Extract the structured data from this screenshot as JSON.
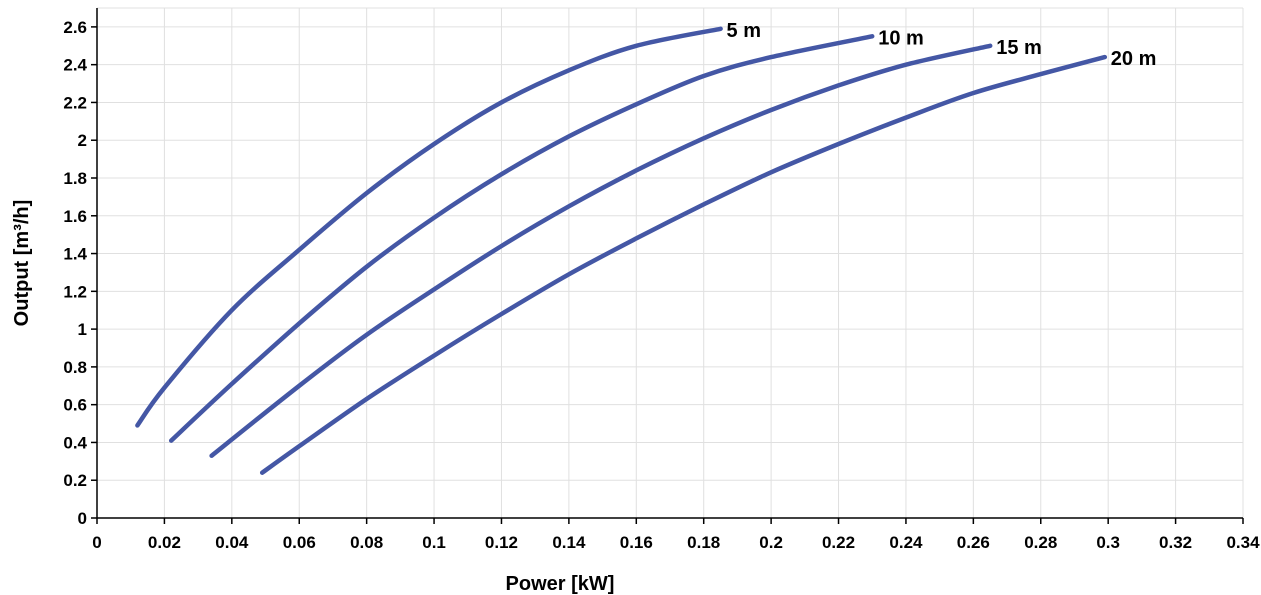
{
  "chart_data": {
    "type": "line",
    "xlabel": "Power [kW]",
    "ylabel": "Output [m³/h]",
    "xlim": [
      0,
      0.34
    ],
    "ylim": [
      0,
      2.7
    ],
    "x_ticks": [
      "0",
      "0.02",
      "0.04",
      "0.06",
      "0.08",
      "0.1",
      "0.12",
      "0.14",
      "0.16",
      "0.18",
      "0.2",
      "0.22",
      "0.24",
      "0.26",
      "0.28",
      "0.3",
      "0.32",
      "0.34"
    ],
    "y_ticks": [
      "0",
      "0.2",
      "0.4",
      "0.6",
      "0.8",
      "1",
      "1.2",
      "1.4",
      "1.6",
      "1.8",
      "2",
      "2.2",
      "2.4",
      "2.6"
    ],
    "grid": true,
    "line_color": "#4457A5",
    "series": [
      {
        "name": "5 m",
        "points": [
          [
            0.012,
            0.49
          ],
          [
            0.02,
            0.69
          ],
          [
            0.04,
            1.1
          ],
          [
            0.06,
            1.42
          ],
          [
            0.08,
            1.72
          ],
          [
            0.1,
            1.98
          ],
          [
            0.12,
            2.2
          ],
          [
            0.14,
            2.37
          ],
          [
            0.16,
            2.5
          ],
          [
            0.185,
            2.59
          ]
        ]
      },
      {
        "name": "10 m",
        "points": [
          [
            0.022,
            0.41
          ],
          [
            0.04,
            0.71
          ],
          [
            0.06,
            1.03
          ],
          [
            0.08,
            1.33
          ],
          [
            0.1,
            1.59
          ],
          [
            0.12,
            1.82
          ],
          [
            0.14,
            2.02
          ],
          [
            0.16,
            2.19
          ],
          [
            0.18,
            2.34
          ],
          [
            0.2,
            2.44
          ],
          [
            0.23,
            2.55
          ]
        ]
      },
      {
        "name": "15 m",
        "points": [
          [
            0.034,
            0.33
          ],
          [
            0.06,
            0.7
          ],
          [
            0.08,
            0.97
          ],
          [
            0.1,
            1.21
          ],
          [
            0.12,
            1.44
          ],
          [
            0.14,
            1.65
          ],
          [
            0.16,
            1.84
          ],
          [
            0.18,
            2.01
          ],
          [
            0.2,
            2.16
          ],
          [
            0.22,
            2.29
          ],
          [
            0.24,
            2.4
          ],
          [
            0.265,
            2.5
          ]
        ]
      },
      {
        "name": "20 m",
        "points": [
          [
            0.049,
            0.24
          ],
          [
            0.06,
            0.38
          ],
          [
            0.08,
            0.63
          ],
          [
            0.1,
            0.86
          ],
          [
            0.12,
            1.08
          ],
          [
            0.14,
            1.29
          ],
          [
            0.16,
            1.48
          ],
          [
            0.18,
            1.66
          ],
          [
            0.2,
            1.83
          ],
          [
            0.22,
            1.98
          ],
          [
            0.24,
            2.12
          ],
          [
            0.26,
            2.25
          ],
          [
            0.28,
            2.35
          ],
          [
            0.299,
            2.44
          ]
        ]
      }
    ]
  }
}
